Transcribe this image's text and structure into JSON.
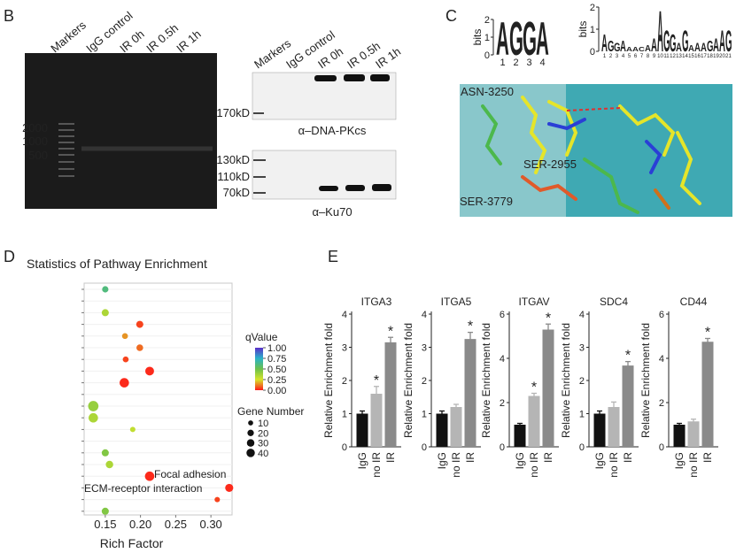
{
  "panel_labels": {
    "b": "B",
    "c": "C",
    "d": "D",
    "e": "E"
  },
  "gel": {
    "lanes": [
      "Markers",
      "IgG control",
      "IR 0h",
      "IR 0.5h",
      "IR 1h"
    ],
    "markers": [
      "2000",
      "1000",
      "500"
    ]
  },
  "western": {
    "lanes": [
      "Markers",
      "IgG control",
      "IR 0h",
      "IR 0.5h",
      "IR 1h"
    ],
    "top": {
      "markers": [
        "170kD"
      ],
      "antibody": "α–DNA-PKcs"
    },
    "bottom": {
      "markers": [
        "130kD",
        "110kD",
        "70kD"
      ],
      "antibody": "α–Ku70"
    }
  },
  "logo_colors": {
    "A": "#e8251f",
    "G": "#f3a81c",
    "C": "#2f5faa",
    "T": "#3aa33a"
  },
  "logos": [
    {
      "ylabel": "bits",
      "ylim": [
        0,
        2
      ],
      "yticks": [
        0,
        1,
        2
      ],
      "letters": [
        "A",
        "G",
        "G",
        "A"
      ],
      "heights": [
        1.9,
        1.95,
        1.95,
        1.9
      ],
      "positions": [
        1,
        2,
        3,
        4
      ]
    },
    {
      "ylabel": "bits",
      "ylim": [
        0,
        2
      ],
      "yticks": [
        0,
        1,
        2
      ],
      "letters": [
        "A",
        "G",
        "G",
        "A",
        "A",
        "A",
        "C",
        "A",
        "A",
        "A",
        "G",
        "G",
        "A",
        "G",
        "A",
        "A",
        "A",
        "G",
        "A",
        "A",
        "G"
      ],
      "heights": [
        0.8,
        0.5,
        0.4,
        0.5,
        0.2,
        0.2,
        0.2,
        0.3,
        0.6,
        1.9,
        1.0,
        0.8,
        0.4,
        1.0,
        0.3,
        0.4,
        0.4,
        0.5,
        0.6,
        1.0,
        1.0
      ],
      "positions": [
        1,
        2,
        3,
        4,
        5,
        6,
        7,
        8,
        9,
        10,
        11,
        12,
        13,
        14,
        15,
        16,
        17,
        18,
        19,
        20,
        21
      ]
    }
  ],
  "structure": {
    "residues": [
      "ASN-3250",
      "SER-2955",
      "SER-3779"
    ]
  },
  "chart_data": [
    {
      "type": "scatter",
      "title": "Statistics of Pathway Enrichment",
      "xlabel": "Rich Factor",
      "xlim": [
        0.12,
        0.33
      ],
      "xticks": [
        0.15,
        {
          "value": 0.2,
          "label": "0.20"
        },
        0.25,
        {
          "value": 0.3,
          "label": "0.30"
        }
      ],
      "categories": [
        null,
        null,
        null,
        null,
        null,
        null,
        null,
        null,
        null,
        null,
        null,
        null,
        null,
        null,
        null,
        null,
        null,
        null,
        null,
        null
      ],
      "x": [
        0.15,
        0.15,
        0.199,
        0.178,
        0.199,
        0.179,
        0.213,
        0.177,
        0.133,
        0.133,
        0.189,
        0.15,
        0.156,
        0.213,
        0.326,
        0.309,
        0.15
      ],
      "y": [
        0,
        2,
        3,
        4,
        5,
        6,
        7,
        8,
        10,
        11,
        12,
        14,
        15,
        16,
        17,
        18,
        19
      ],
      "qvalues": [
        0.6,
        0.35,
        0.05,
        0.15,
        0.1,
        0.05,
        0.02,
        0.02,
        0.4,
        0.35,
        0.3,
        0.45,
        0.35,
        0.02,
        0.02,
        0.05,
        0.45
      ],
      "sizes": [
        10,
        14,
        14,
        8,
        12,
        8,
        25,
        30,
        38,
        30,
        6,
        14,
        16,
        30,
        20,
        6,
        14
      ],
      "annotations": [
        "Focal adhesion",
        "ECM-receptor interaction"
      ],
      "color_legend": {
        "title": "qValue",
        "ticks": [
          {
            "value": 1,
            "label": "1.00"
          },
          0.75,
          {
            "value": 0.5,
            "label": "0.50"
          },
          0.25,
          {
            "value": 0,
            "label": "0.00"
          }
        ],
        "colors": [
          "#ff1a1a",
          "#d6e52b",
          "#6cc04a",
          "#29b3c9",
          "#5a2ec9"
        ]
      },
      "size_legend": {
        "title": "Gene Number",
        "values": [
          10,
          20,
          30,
          40
        ]
      }
    },
    {
      "type": "bar",
      "title": "ITGA3",
      "ylabel": "Relative Enrichment fold",
      "categories": [
        "IgG",
        "no IR",
        "IR"
      ],
      "values": [
        1.0,
        1.6,
        3.15
      ],
      "errors": [
        0.08,
        0.22,
        0.15
      ],
      "colors": [
        "#111111",
        "#b5b5b5",
        "#8a8a8a"
      ],
      "significance": [
        null,
        "*",
        "*"
      ],
      "ylim": [
        0,
        4
      ],
      "yticks": [
        0,
        1,
        2,
        3,
        4
      ]
    },
    {
      "type": "bar",
      "title": "ITGA5",
      "ylabel": "Relative Enrichment fold",
      "categories": [
        "IgG",
        "no IR",
        "IR"
      ],
      "values": [
        1.0,
        1.2,
        3.25
      ],
      "errors": [
        0.08,
        0.08,
        0.2
      ],
      "colors": [
        "#111111",
        "#b5b5b5",
        "#8a8a8a"
      ],
      "significance": [
        null,
        null,
        "*"
      ],
      "ylim": [
        0,
        4
      ],
      "yticks": [
        0,
        1,
        2,
        3,
        4
      ]
    },
    {
      "type": "bar",
      "title": "ITGAV",
      "ylabel": "Relative Enrichment fold",
      "categories": [
        "IgG",
        "no IR",
        "IR"
      ],
      "values": [
        1.0,
        2.3,
        5.3
      ],
      "errors": [
        0.06,
        0.12,
        0.25
      ],
      "colors": [
        "#111111",
        "#b5b5b5",
        "#8a8a8a"
      ],
      "significance": [
        null,
        "*",
        "*"
      ],
      "ylim": [
        0,
        6
      ],
      "yticks": [
        0,
        2,
        4,
        6
      ]
    },
    {
      "type": "bar",
      "title": "SDC4",
      "ylabel": "Relative Enrichment fold",
      "categories": [
        "IgG",
        "no IR",
        "IR"
      ],
      "values": [
        1.0,
        1.2,
        2.45
      ],
      "errors": [
        0.08,
        0.15,
        0.12
      ],
      "colors": [
        "#111111",
        "#b5b5b5",
        "#8a8a8a"
      ],
      "significance": [
        null,
        null,
        "*"
      ],
      "ylim": [
        0,
        4
      ],
      "yticks": [
        0,
        1,
        2,
        3,
        4
      ]
    },
    {
      "type": "bar",
      "title": "CD44",
      "ylabel": "Relative Enrichment fold",
      "categories": [
        "IgG",
        "no IR",
        "IR"
      ],
      "values": [
        1.0,
        1.15,
        4.75
      ],
      "errors": [
        0.06,
        0.1,
        0.15
      ],
      "colors": [
        "#111111",
        "#b5b5b5",
        "#8a8a8a"
      ],
      "significance": [
        null,
        null,
        "*"
      ],
      "ylim": [
        0,
        6
      ],
      "yticks": [
        0,
        2,
        4,
        6
      ]
    }
  ]
}
